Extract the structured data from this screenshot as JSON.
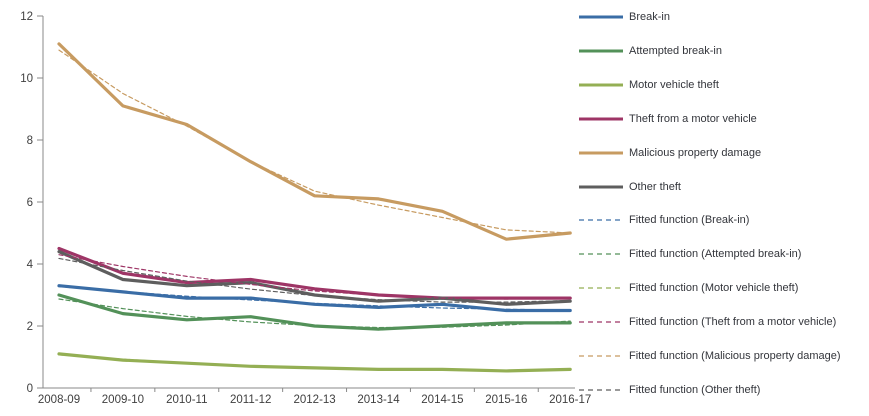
{
  "chart_data": {
    "type": "line",
    "title": "",
    "xlabel": "",
    "ylabel": "",
    "ylim": [
      0,
      12
    ],
    "yticks": [
      0,
      2,
      4,
      6,
      8,
      10,
      12
    ],
    "grid": false,
    "legend_position": "right",
    "categories": [
      "2008-09",
      "2009-10",
      "2010-11",
      "2011-12",
      "2012-13",
      "2013-14",
      "2014-15",
      "2015-16",
      "2016-17"
    ],
    "series": [
      {
        "name": "Break-in",
        "color": "#3a6da6",
        "style": "solid",
        "values": [
          3.3,
          3.1,
          2.9,
          2.9,
          2.7,
          2.6,
          2.7,
          2.5,
          2.5
        ]
      },
      {
        "name": "Attempted break-in",
        "color": "#539159",
        "style": "solid",
        "values": [
          3.0,
          2.4,
          2.2,
          2.3,
          2.0,
          1.9,
          2.0,
          2.1,
          2.1
        ]
      },
      {
        "name": "Motor vehicle theft",
        "color": "#94af54",
        "style": "solid",
        "values": [
          1.1,
          0.9,
          0.8,
          0.7,
          0.65,
          0.6,
          0.6,
          0.55,
          0.6
        ]
      },
      {
        "name": "Theft from a motor vehicle",
        "color": "#9e3566",
        "style": "solid",
        "values": [
          4.5,
          3.7,
          3.4,
          3.5,
          3.2,
          3.0,
          2.9,
          2.9,
          2.9
        ]
      },
      {
        "name": "Malicious property damage",
        "color": "#c79b61",
        "style": "solid",
        "values": [
          11.1,
          9.1,
          8.5,
          7.3,
          6.2,
          6.1,
          5.7,
          4.8,
          5.0
        ]
      },
      {
        "name": "Other theft",
        "color": "#5e5e5e",
        "style": "solid",
        "values": [
          4.4,
          3.5,
          3.3,
          3.4,
          3.0,
          2.8,
          2.9,
          2.7,
          2.8
        ]
      },
      {
        "name": "Fitted function (Break-in)",
        "color": "#3a6da6",
        "style": "dashed",
        "values": [
          3.27,
          3.11,
          2.96,
          2.84,
          2.73,
          2.65,
          2.58,
          2.54,
          2.51
        ]
      },
      {
        "name": "Fitted function (Attempted break-in)",
        "color": "#539159",
        "style": "dashed",
        "values": [
          2.87,
          2.56,
          2.31,
          2.13,
          2.01,
          1.95,
          1.96,
          2.03,
          2.16
        ]
      },
      {
        "name": "Fitted function (Motor vehicle theft)",
        "color": "#94af54",
        "style": "dashed",
        "values": [
          1.07,
          0.93,
          0.81,
          0.71,
          0.64,
          0.59,
          0.57,
          0.57,
          0.6
        ]
      },
      {
        "name": "Fitted function (Theft from a motor vehicle)",
        "color": "#9e3566",
        "style": "dashed",
        "values": [
          4.3,
          3.92,
          3.6,
          3.34,
          3.13,
          2.99,
          2.9,
          2.87,
          2.9
        ]
      },
      {
        "name": "Fitted function (Malicious property damage)",
        "color": "#c79b61",
        "style": "dashed",
        "values": [
          10.9,
          9.5,
          8.45,
          7.3,
          6.35,
          5.9,
          5.5,
          5.1,
          5.0
        ]
      },
      {
        "name": "Fitted function (Other theft)",
        "color": "#5e5e5e",
        "style": "dashed",
        "values": [
          4.18,
          3.79,
          3.45,
          3.19,
          2.98,
          2.85,
          2.77,
          2.77,
          2.82
        ]
      }
    ]
  },
  "colors": {
    "axis_line": "#898989",
    "tick_text": "#3f3f3f",
    "legend_text": "#33353b",
    "background": "#ffffff"
  }
}
